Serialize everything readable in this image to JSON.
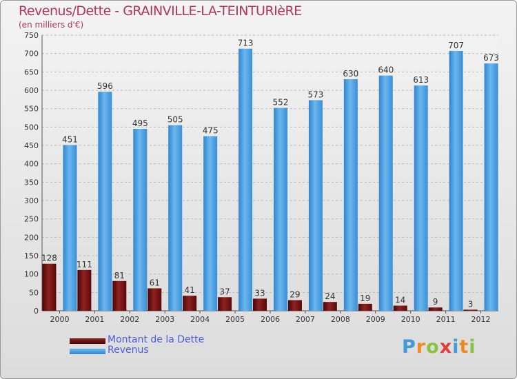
{
  "header": {
    "title": "Revenus/Dette - GRAINVILLE-LA-TEINTURIèRE",
    "subtitle": "(en milliers d'€)"
  },
  "legend": {
    "items": [
      {
        "label": "Montant de la Dette",
        "color": "#6a0a0a"
      },
      {
        "label": "Revenus",
        "color": "#3f96dc"
      }
    ]
  },
  "logo": {
    "text": "Proxiti",
    "letters": [
      "P",
      "r",
      "o",
      "x",
      "i",
      "t",
      "i"
    ],
    "colors": [
      "#3f9ad6",
      "#f08a1c",
      "#8ac43f",
      "#e23d3d",
      "#3f9ad6",
      "#f08a1c",
      "#8ac43f"
    ]
  },
  "chart_data": {
    "type": "bar",
    "categories": [
      "2000",
      "2001",
      "2002",
      "2003",
      "2004",
      "2005",
      "2006",
      "2007",
      "2008",
      "2009",
      "2010",
      "2011",
      "2012"
    ],
    "series": [
      {
        "name": "Montant de la Dette",
        "color": "#6a0a0a",
        "values": [
          128,
          111,
          81,
          61,
          41,
          37,
          33,
          29,
          24,
          19,
          14,
          9,
          3
        ]
      },
      {
        "name": "Revenus",
        "color": "#3f96dc",
        "values": [
          451,
          596,
          495,
          505,
          475,
          713,
          552,
          573,
          630,
          640,
          613,
          707,
          673
        ]
      }
    ],
    "ylim": [
      0,
      750
    ],
    "yticks": [
      0,
      50,
      100,
      150,
      200,
      250,
      300,
      350,
      400,
      450,
      500,
      550,
      600,
      650,
      700,
      750
    ],
    "grid": true,
    "legend_position": "bottom-left"
  }
}
